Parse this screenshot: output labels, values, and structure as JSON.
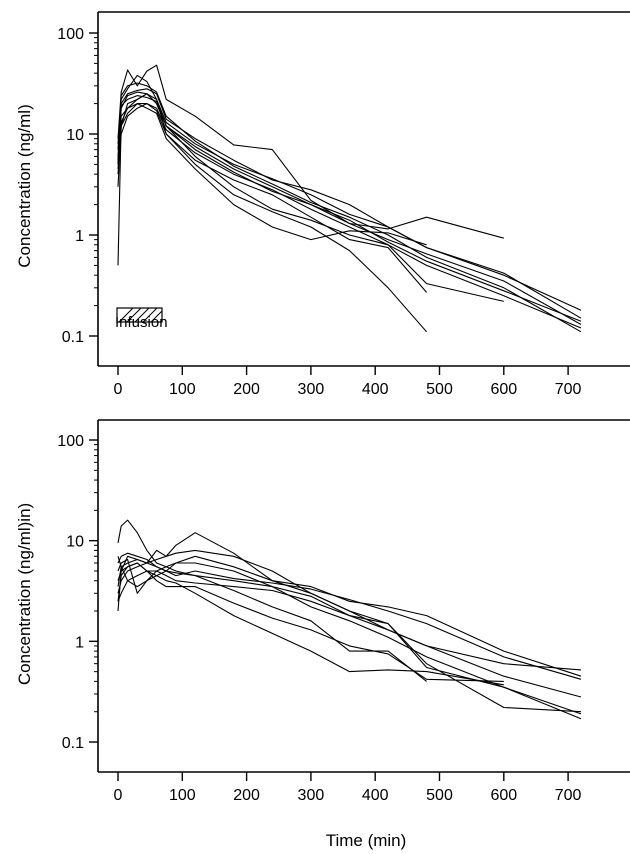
{
  "chart_data": [
    {
      "type": "line",
      "title": "",
      "xlabel": "",
      "ylabel": "Concentration (ng/ml)",
      "yscale": "log",
      "xlim": [
        -5,
        730
      ],
      "ylim": [
        0.1,
        140
      ],
      "x_ticks": [
        0,
        100,
        200,
        300,
        400,
        500,
        600,
        700
      ],
      "y_ticks": [
        0.1,
        1,
        10,
        100
      ],
      "y_tick_labels": [
        "0.1",
        "1",
        "10",
        "100"
      ],
      "grid": false,
      "legend": {
        "label": "Infusion",
        "placement": "bottom-left",
        "shows_interval": [
          0,
          60
        ]
      },
      "series": [
        {
          "x": [
            0,
            5,
            15,
            30,
            45,
            60,
            75,
            120,
            180,
            240,
            300,
            360,
            420,
            480,
            600,
            720
          ],
          "y": [
            5.0,
            18,
            24,
            26,
            25,
            20,
            12,
            7.5,
            4.5,
            3.0,
            2.0,
            1.4,
            0.85,
            0.55,
            0.28,
            0.14
          ]
        },
        {
          "x": [
            0,
            5,
            15,
            30,
            45,
            60,
            75,
            120,
            180,
            240,
            300,
            360,
            420,
            480,
            600,
            720
          ],
          "y": [
            8.0,
            22,
            28,
            38,
            33,
            22,
            13,
            8.0,
            5.0,
            3.6,
            2.5,
            1.6,
            1.2,
            0.75,
            0.42,
            0.15
          ]
        },
        {
          "x": [
            0,
            5,
            15,
            30,
            45,
            60,
            75,
            120,
            180,
            240,
            300,
            360,
            420,
            480,
            600,
            720
          ],
          "y": [
            4.5,
            12,
            16,
            20,
            20,
            18,
            11,
            6.5,
            4.0,
            2.8,
            1.8,
            1.2,
            0.8,
            0.5,
            0.25,
            0.12
          ]
        },
        {
          "x": [
            0,
            5,
            15,
            30,
            45,
            60,
            75,
            120,
            180,
            240,
            300,
            360,
            420,
            480,
            600
          ],
          "y": [
            9.0,
            26,
            43,
            30,
            42,
            48,
            22,
            15,
            7.8,
            7.0,
            2.2,
            1.3,
            1.15,
            1.5,
            0.93
          ]
        },
        {
          "x": [
            0,
            5,
            15,
            30,
            45,
            60,
            75,
            120,
            180,
            240,
            300,
            360,
            420,
            480
          ],
          "y": [
            0.5,
            13,
            18,
            22,
            25,
            22,
            10,
            5.0,
            2.5,
            1.7,
            1.2,
            0.7,
            0.3,
            0.11
          ]
        },
        {
          "x": [
            0,
            5,
            15,
            30,
            45,
            60,
            75,
            120,
            180,
            240,
            300,
            360,
            420,
            480,
            600,
            720
          ],
          "y": [
            6.0,
            20,
            25,
            27,
            28,
            25,
            14,
            9.0,
            5.5,
            3.5,
            2.8,
            2.0,
            1.2,
            0.75,
            0.4,
            0.18
          ]
        },
        {
          "x": [
            0,
            5,
            15,
            30,
            45,
            60,
            75,
            120,
            180,
            240,
            300,
            360,
            420,
            480
          ],
          "y": [
            4.0,
            10,
            15,
            18,
            20,
            17,
            10,
            5.5,
            3.5,
            2.5,
            1.5,
            0.9,
            0.75,
            0.27
          ]
        },
        {
          "x": [
            0,
            5,
            15,
            30,
            45,
            60,
            75,
            120,
            180,
            240,
            300,
            360,
            420,
            480,
            600,
            720
          ],
          "y": [
            7.0,
            24,
            30,
            32,
            30,
            26,
            15,
            8.5,
            4.8,
            3.2,
            2.1,
            1.5,
            1.0,
            0.6,
            0.3,
            0.11
          ]
        },
        {
          "x": [
            0,
            5,
            15,
            30,
            45,
            60,
            75,
            120,
            180,
            240,
            300,
            360,
            420,
            480
          ],
          "y": [
            5.5,
            15,
            18,
            20,
            18,
            16,
            9.0,
            4.5,
            2.0,
            1.2,
            0.9,
            1.1,
            1.05,
            0.8
          ]
        },
        {
          "x": [
            0,
            5,
            15,
            30,
            45,
            60,
            75,
            120,
            180,
            240,
            300,
            360,
            420,
            480,
            600,
            720
          ],
          "y": [
            5.0,
            19,
            22,
            24,
            23,
            21,
            12,
            7.0,
            4.2,
            2.7,
            2.0,
            1.3,
            0.9,
            0.65,
            0.35,
            0.13
          ]
        },
        {
          "x": [
            0,
            5,
            15,
            30,
            45,
            60,
            75,
            120,
            180,
            240,
            300,
            360,
            420,
            480,
            600
          ],
          "y": [
            3.0,
            12,
            20,
            22,
            25,
            20,
            12,
            6.0,
            3.0,
            1.8,
            1.4,
            1.0,
            0.8,
            0.33,
            0.22
          ]
        }
      ]
    },
    {
      "type": "line",
      "title": "",
      "xlabel": "Time (min)",
      "ylabel": "Concentration (ng/ml)in)",
      "yscale": "log",
      "xlim": [
        -5,
        730
      ],
      "ylim": [
        0.1,
        140
      ],
      "x_ticks": [
        0,
        100,
        200,
        300,
        400,
        500,
        600,
        700
      ],
      "y_ticks": [
        0.1,
        1,
        10,
        100
      ],
      "y_tick_labels": [
        "0.1",
        "1",
        "10",
        "100"
      ],
      "grid": false,
      "series": [
        {
          "x": [
            0,
            5,
            15,
            30,
            45,
            60,
            75,
            90,
            120,
            180,
            240,
            300,
            360,
            420,
            480,
            600,
            720
          ],
          "y": [
            2.5,
            4.5,
            5.5,
            6.0,
            5.0,
            4.5,
            5.0,
            6.0,
            7.0,
            5.5,
            4.0,
            3.0,
            2.0,
            1.3,
            0.9,
            0.6,
            0.52
          ]
        },
        {
          "x": [
            0,
            5,
            15,
            30,
            45,
            60,
            75,
            90,
            120,
            180,
            240,
            300,
            360,
            420,
            480
          ],
          "y": [
            9.5,
            14,
            16,
            12,
            8.0,
            6.0,
            5.5,
            5.0,
            4.5,
            3.2,
            2.2,
            1.6,
            0.8,
            0.8,
            0.4
          ]
        },
        {
          "x": [
            0,
            5,
            15,
            30,
            45,
            60,
            75,
            90,
            120,
            180,
            240,
            300,
            360,
            420,
            480,
            600,
            720
          ],
          "y": [
            2.0,
            5.0,
            7.0,
            6.5,
            6.0,
            8.0,
            7.0,
            9.0,
            12,
            7.5,
            4.0,
            3.5,
            2.5,
            2.2,
            1.8,
            0.8,
            0.45
          ]
        },
        {
          "x": [
            0,
            5,
            15,
            30,
            45,
            60,
            75,
            90,
            120,
            180,
            240,
            300,
            360,
            420,
            480,
            600,
            720
          ],
          "y": [
            6.0,
            7.0,
            7.5,
            7.0,
            6.5,
            5.5,
            5.0,
            4.8,
            4.5,
            4.0,
            3.5,
            2.8,
            1.8,
            1.3,
            0.9,
            0.45,
            0.28
          ]
        },
        {
          "x": [
            0,
            5,
            15,
            30,
            45,
            60,
            75,
            90,
            120,
            180,
            240,
            300,
            360,
            420,
            480,
            600,
            720
          ],
          "y": [
            3.0,
            4.0,
            5.0,
            5.5,
            6.0,
            6.5,
            7.0,
            7.5,
            8.0,
            7.0,
            5.0,
            3.0,
            2.0,
            1.5,
            0.6,
            0.22,
            0.2
          ]
        },
        {
          "x": [
            0,
            5,
            15,
            30,
            45,
            60,
            75,
            90,
            120,
            180,
            240,
            300,
            360,
            420,
            480,
            600
          ],
          "y": [
            4.0,
            5.0,
            5.5,
            6.0,
            5.0,
            4.0,
            3.5,
            3.5,
            3.5,
            2.4,
            1.7,
            1.3,
            0.9,
            0.75,
            0.42,
            0.4
          ]
        },
        {
          "x": [
            0,
            5,
            15,
            30,
            45,
            60,
            75,
            90,
            120,
            180,
            240,
            300,
            360,
            420,
            480,
            600,
            720
          ],
          "y": [
            5.0,
            6.0,
            6.5,
            3.0,
            4.0,
            5.0,
            5.5,
            6.0,
            6.0,
            5.0,
            3.5,
            2.2,
            1.6,
            1.1,
            0.7,
            0.35,
            0.17
          ]
        },
        {
          "x": [
            0,
            5,
            15,
            30,
            45,
            60,
            75,
            90,
            120,
            180,
            240,
            300,
            360,
            420,
            480,
            600,
            720
          ],
          "y": [
            7.0,
            5.5,
            4.0,
            4.5,
            5.0,
            5.0,
            4.5,
            4.0,
            3.8,
            3.5,
            3.2,
            2.5,
            1.8,
            1.5,
            0.55,
            0.35,
            0.19
          ]
        },
        {
          "x": [
            0,
            5,
            15,
            30,
            45,
            60,
            75,
            90,
            120,
            180,
            240,
            300,
            360,
            420,
            480,
            600
          ],
          "y": [
            2.5,
            3.0,
            4.0,
            3.5,
            4.0,
            4.5,
            4.0,
            3.8,
            3.0,
            1.8,
            1.2,
            0.8,
            0.5,
            0.52,
            0.5,
            0.37
          ]
        },
        {
          "x": [
            0,
            5,
            15,
            30,
            45,
            60,
            75,
            90,
            120,
            180,
            240,
            300,
            360,
            420,
            480,
            600,
            720
          ],
          "y": [
            3.5,
            5.5,
            6.0,
            6.5,
            6.0,
            5.5,
            5.0,
            4.5,
            5.0,
            4.2,
            3.8,
            3.3,
            2.6,
            2.0,
            1.5,
            0.7,
            0.42
          ]
        }
      ]
    }
  ]
}
